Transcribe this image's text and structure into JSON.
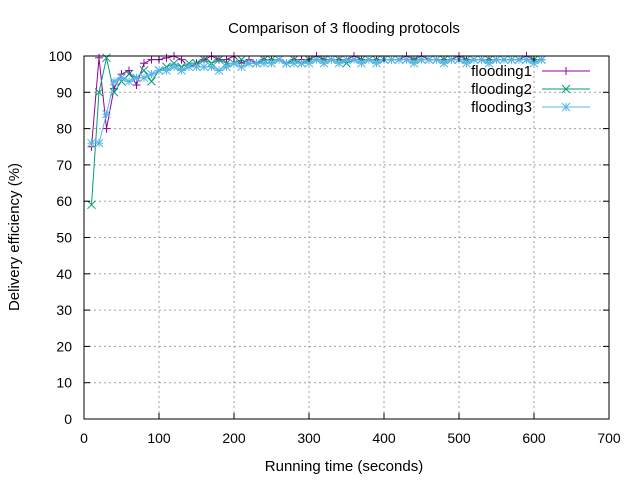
{
  "chart_data": {
    "type": "line",
    "title": "Comparison of 3 flooding protocols",
    "xlabel": "Running time (seconds)",
    "ylabel": "Delivery efficiency (%)",
    "xlim": [
      0,
      700
    ],
    "ylim": [
      0,
      100
    ],
    "xticks": [
      "0",
      "100",
      "200",
      "300",
      "400",
      "500",
      "600",
      "700"
    ],
    "yticks": [
      "0",
      "10",
      "20",
      "30",
      "40",
      "50",
      "60",
      "70",
      "80",
      "90",
      "100"
    ],
    "grid": true,
    "legend_position": "top-right",
    "x": [
      10,
      20,
      30,
      40,
      50,
      60,
      70,
      80,
      90,
      100,
      110,
      120,
      130,
      140,
      150,
      160,
      170,
      180,
      190,
      200,
      210,
      220,
      230,
      240,
      250,
      260,
      270,
      280,
      290,
      300,
      310,
      320,
      330,
      340,
      350,
      360,
      370,
      380,
      390,
      400,
      410,
      420,
      430,
      440,
      450,
      460,
      470,
      480,
      490,
      500,
      510,
      520,
      530,
      540,
      550,
      560,
      570,
      580,
      590,
      600,
      610
    ],
    "series": [
      {
        "name": "flooding1",
        "color": "#94009e",
        "marker": "plus",
        "values": [
          75,
          99.5,
          80,
          91,
          95,
          96,
          92,
          98,
          99,
          99,
          99.5,
          100,
          99,
          97,
          98,
          99,
          100,
          99,
          99,
          100,
          98,
          99,
          98,
          99,
          99,
          99,
          98,
          99,
          99,
          99,
          100,
          99,
          99,
          99,
          99,
          100,
          99,
          99,
          99,
          99,
          99,
          99,
          100,
          99,
          100,
          99,
          99,
          99,
          99,
          100,
          99,
          99,
          99,
          99,
          99,
          99,
          99,
          99,
          100,
          99,
          99
        ]
      },
      {
        "name": "flooding2",
        "color": "#009e73",
        "marker": "cross",
        "values": [
          59,
          90,
          99.5,
          90,
          93,
          95,
          94,
          96,
          93,
          96,
          97,
          98,
          97,
          98,
          98,
          99,
          98,
          99,
          98,
          98,
          99,
          98,
          98,
          99,
          99,
          99,
          98,
          99,
          98,
          99,
          99,
          99,
          99,
          99,
          98,
          99,
          99,
          99,
          99,
          99,
          99,
          99,
          99,
          99,
          99,
          99,
          99,
          99,
          99,
          99,
          99,
          99,
          99,
          99,
          99,
          99,
          99,
          99,
          99,
          99,
          99
        ]
      },
      {
        "name": "flooding3",
        "color": "#56b4e9",
        "marker": "star",
        "values": [
          76,
          76,
          84,
          93,
          94,
          93,
          94,
          94,
          95,
          96,
          96,
          97,
          96,
          97,
          97,
          97,
          97,
          96,
          97,
          98,
          97,
          98,
          98,
          98,
          98,
          99,
          98,
          98,
          98,
          98,
          99,
          98,
          99,
          98,
          99,
          99,
          98,
          99,
          98,
          99,
          99,
          99,
          99,
          98,
          99,
          99,
          99,
          98,
          99,
          99,
          98,
          99,
          99,
          98,
          99,
          99,
          99,
          99,
          99,
          98,
          99
        ]
      }
    ]
  }
}
